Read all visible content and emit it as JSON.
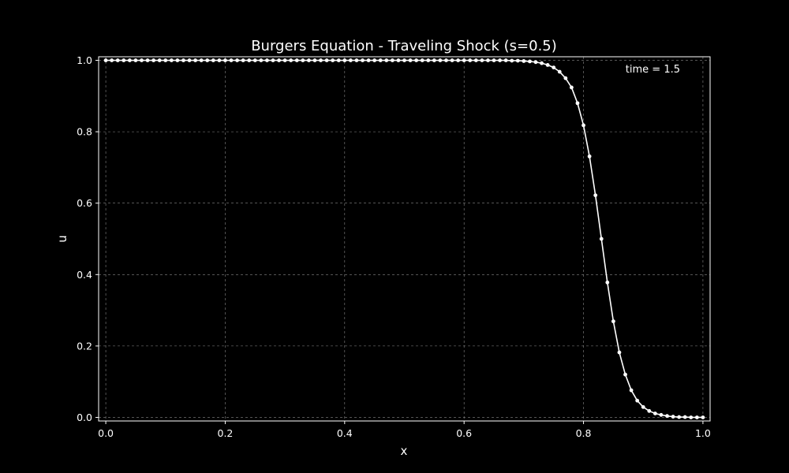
{
  "chart_data": {
    "type": "line",
    "title": "Burgers Equation - Traveling Shock (s=0.5)",
    "xlabel": "x",
    "ylabel": "u",
    "xlim": [
      -0.012,
      1.012
    ],
    "ylim": [
      -0.01,
      1.01
    ],
    "xticks": [
      "0.0",
      "0.2",
      "0.4",
      "0.6",
      "0.8",
      "1.0"
    ],
    "yticks": [
      "0.0",
      "0.2",
      "0.4",
      "0.6",
      "0.8",
      "1.0"
    ],
    "grid": true,
    "annotation": "time = 1.5",
    "annotation_position": "top-right",
    "series": [
      {
        "color": "#ffffff",
        "marker": "circle",
        "x": [
          0.0,
          0.01,
          0.02,
          0.03,
          0.04,
          0.05,
          0.06,
          0.07,
          0.08,
          0.09,
          0.1,
          0.11,
          0.12,
          0.13,
          0.14,
          0.15,
          0.16,
          0.17,
          0.18,
          0.19,
          0.2,
          0.21,
          0.22,
          0.23,
          0.24,
          0.25,
          0.26,
          0.27,
          0.28,
          0.29,
          0.3,
          0.31,
          0.32,
          0.33,
          0.34,
          0.35,
          0.36,
          0.37,
          0.38,
          0.39,
          0.4,
          0.41,
          0.42,
          0.43,
          0.44,
          0.45,
          0.46,
          0.47,
          0.48,
          0.49,
          0.5,
          0.51,
          0.52,
          0.53,
          0.54,
          0.55,
          0.56,
          0.57,
          0.58,
          0.59,
          0.6,
          0.61,
          0.62,
          0.63,
          0.64,
          0.65,
          0.66,
          0.67,
          0.68,
          0.69,
          0.7,
          0.71,
          0.72,
          0.73,
          0.74,
          0.75,
          0.76,
          0.77,
          0.78,
          0.79,
          0.8,
          0.81,
          0.82,
          0.83,
          0.84,
          0.85,
          0.86,
          0.87,
          0.88,
          0.89,
          0.9,
          0.91,
          0.92,
          0.93,
          0.94,
          0.95,
          0.96,
          0.97,
          0.98,
          0.99,
          1.0
        ],
        "y": [
          1,
          1,
          1,
          1,
          1,
          1,
          1,
          1,
          1,
          1,
          1,
          1,
          1,
          1,
          1,
          1,
          1,
          1,
          1,
          1,
          1,
          1,
          1,
          1,
          1,
          1,
          1,
          1,
          1,
          1,
          1,
          1,
          1,
          1,
          1,
          1,
          1,
          1,
          1,
          1,
          1,
          1,
          1,
          1,
          1,
          1,
          1,
          1,
          1,
          1,
          1,
          1,
          1,
          1,
          1,
          1,
          1,
          1,
          1,
          1,
          1,
          1,
          1,
          1,
          1,
          1,
          1,
          1,
          0.999,
          0.999,
          0.998,
          0.997,
          0.995,
          0.992,
          0.987,
          0.98,
          0.968,
          0.95,
          0.924,
          0.88,
          0.818,
          0.731,
          0.622,
          0.5,
          0.378,
          0.269,
          0.182,
          0.12,
          0.076,
          0.047,
          0.029,
          0.018,
          0.011,
          0.007,
          0.004,
          0.002,
          0.001,
          0.001,
          0.0,
          0.0,
          0.0
        ]
      }
    ]
  }
}
